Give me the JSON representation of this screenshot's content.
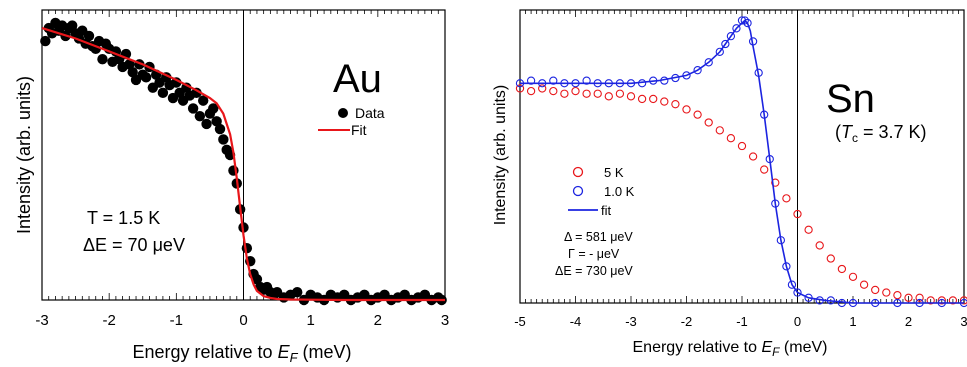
{
  "chart_data": [
    {
      "type": "scatter",
      "xlabel": "Energy relative to",
      "xlabel_var": "E",
      "xlabel_sub": "F",
      "xlabel_unit": " (meV)",
      "ylabel": "Intensity (arb. units)",
      "xlim": [
        -3,
        3
      ],
      "ylim": [
        0,
        1.12
      ],
      "xticks": [
        "-3",
        "-2",
        "-1",
        "0",
        "1",
        "2",
        "3"
      ],
      "yticks_labeled": false,
      "vline_x": 0,
      "sample_label": "Au",
      "annotations": [
        "T = 1.5 K",
        "ΔE = 70 μeV"
      ],
      "legend": {
        "placement": "right",
        "entries": [
          "Data",
          "Fit"
        ]
      },
      "colors": {
        "data": "#000000",
        "fit": "#e8161a"
      },
      "series": [
        {
          "name": "Data",
          "marker": "filled-circle",
          "x": [
            -2.95,
            -2.9,
            -2.85,
            -2.8,
            -2.75,
            -2.7,
            -2.65,
            -2.6,
            -2.55,
            -2.5,
            -2.45,
            -2.4,
            -2.35,
            -2.3,
            -2.25,
            -2.2,
            -2.15,
            -2.1,
            -2.05,
            -2.0,
            -1.95,
            -1.9,
            -1.85,
            -1.8,
            -1.75,
            -1.7,
            -1.65,
            -1.6,
            -1.55,
            -1.5,
            -1.45,
            -1.4,
            -1.35,
            -1.3,
            -1.25,
            -1.2,
            -1.15,
            -1.1,
            -1.05,
            -1.0,
            -0.95,
            -0.9,
            -0.85,
            -0.8,
            -0.75,
            -0.7,
            -0.65,
            -0.6,
            -0.55,
            -0.5,
            -0.45,
            -0.4,
            -0.35,
            -0.3,
            -0.25,
            -0.2,
            -0.15,
            -0.1,
            -0.05,
            0.0,
            0.05,
            0.1,
            0.15,
            0.2,
            0.25,
            0.3,
            0.35,
            0.4,
            0.45,
            0.5,
            0.6,
            0.7,
            0.8,
            0.9,
            1.0,
            1.1,
            1.2,
            1.3,
            1.4,
            1.5,
            1.6,
            1.7,
            1.8,
            1.9,
            2.0,
            2.1,
            2.2,
            2.3,
            2.4,
            2.5,
            2.6,
            2.7,
            2.8,
            2.9,
            2.95
          ],
          "y": [
            1.0,
            1.05,
            1.03,
            1.07,
            1.04,
            1.06,
            1.02,
            1.05,
            1.06,
            1.03,
            1.01,
            1.04,
            0.99,
            1.02,
            0.98,
            0.97,
            1.0,
            0.93,
            0.99,
            0.97,
            0.92,
            0.96,
            0.93,
            0.9,
            0.95,
            0.91,
            0.88,
            0.85,
            0.91,
            0.87,
            0.86,
            0.9,
            0.82,
            0.87,
            0.84,
            0.8,
            0.86,
            0.83,
            0.78,
            0.84,
            0.8,
            0.77,
            0.82,
            0.79,
            0.74,
            0.8,
            0.71,
            0.77,
            0.68,
            0.72,
            0.74,
            0.69,
            0.66,
            0.62,
            0.58,
            0.56,
            0.5,
            0.45,
            0.35,
            0.28,
            0.2,
            0.15,
            0.1,
            0.08,
            0.05,
            0.04,
            0.05,
            0.03,
            0.02,
            0.03,
            0.01,
            0.02,
            0.03,
            0.0,
            0.02,
            0.01,
            0.0,
            0.02,
            0.01,
            0.02,
            0.0,
            0.01,
            0.02,
            0.0,
            0.01,
            0.02,
            0.0,
            0.01,
            0.02,
            0.0,
            0.01,
            0.02,
            0.0,
            0.01,
            0.0
          ]
        },
        {
          "name": "Fit",
          "marker": "line",
          "x": [
            -3.0,
            -2.5,
            -2.0,
            -1.5,
            -1.0,
            -0.7,
            -0.5,
            -0.4,
            -0.3,
            -0.2,
            -0.15,
            -0.1,
            -0.05,
            0.0,
            0.05,
            0.1,
            0.15,
            0.2,
            0.3,
            0.4,
            0.5,
            0.7,
            1.0,
            1.5,
            2.0,
            3.0
          ],
          "y": [
            1.05,
            1.01,
            0.96,
            0.91,
            0.85,
            0.81,
            0.78,
            0.76,
            0.72,
            0.64,
            0.57,
            0.47,
            0.36,
            0.25,
            0.16,
            0.1,
            0.06,
            0.035,
            0.015,
            0.008,
            0.004,
            0.002,
            0.001,
            0.0,
            0.0,
            0.0
          ]
        }
      ]
    },
    {
      "type": "scatter",
      "xlabel": "Energy relative to",
      "xlabel_var": "E",
      "xlabel_sub": "F",
      "xlabel_unit": " (meV)",
      "ylabel": "Intensity (arb. units)",
      "xlim": [
        -5,
        3
      ],
      "ylim": [
        0,
        1.12
      ],
      "xticks": [
        "-5",
        "-4",
        "-3",
        "-2",
        "-1",
        "0",
        "1",
        "2",
        "3"
      ],
      "yticks_labeled": false,
      "vline_x": 0,
      "sample_label": "Sn",
      "tc_label": {
        "pre": "(",
        "var": "T",
        "sub": "c",
        "post": "  = 3.7 K)"
      },
      "annotations": [
        "Δ = 581  μeV",
        "Γ = -  μeV",
        "ΔE = 730  μeV"
      ],
      "legend": {
        "placement": "lower-left",
        "entries": [
          "5 K",
          "1.0 K",
          "fit"
        ]
      },
      "colors": {
        "5K": "#e8161a",
        "1K": "#1c24e0",
        "fit": "#1c24e0"
      },
      "series": [
        {
          "name": "5 K",
          "marker": "open-circle",
          "x": [
            -5.0,
            -4.8,
            -4.6,
            -4.4,
            -4.2,
            -4.0,
            -3.8,
            -3.6,
            -3.4,
            -3.2,
            -3.0,
            -2.8,
            -2.6,
            -2.4,
            -2.2,
            -2.0,
            -1.8,
            -1.6,
            -1.4,
            -1.2,
            -1.0,
            -0.8,
            -0.6,
            -0.4,
            -0.2,
            0.0,
            0.2,
            0.4,
            0.6,
            0.8,
            1.0,
            1.2,
            1.4,
            1.6,
            1.8,
            2.0,
            2.2,
            2.4,
            2.6,
            2.8,
            3.0
          ],
          "y": [
            0.82,
            0.81,
            0.82,
            0.81,
            0.8,
            0.81,
            0.8,
            0.8,
            0.79,
            0.8,
            0.79,
            0.78,
            0.78,
            0.77,
            0.76,
            0.74,
            0.72,
            0.69,
            0.66,
            0.63,
            0.6,
            0.56,
            0.51,
            0.46,
            0.4,
            0.34,
            0.28,
            0.22,
            0.17,
            0.13,
            0.1,
            0.07,
            0.05,
            0.04,
            0.03,
            0.02,
            0.02,
            0.01,
            0.01,
            0.01,
            0.01
          ]
        },
        {
          "name": "1.0 K",
          "marker": "open-circle",
          "x": [
            -5.0,
            -4.8,
            -4.6,
            -4.4,
            -4.2,
            -4.0,
            -3.8,
            -3.6,
            -3.4,
            -3.2,
            -3.0,
            -2.8,
            -2.6,
            -2.4,
            -2.2,
            -2.0,
            -1.8,
            -1.6,
            -1.4,
            -1.3,
            -1.2,
            -1.1,
            -1.0,
            -0.95,
            -0.9,
            -0.8,
            -0.7,
            -0.6,
            -0.5,
            -0.4,
            -0.3,
            -0.2,
            -0.1,
            0.0,
            0.2,
            0.4,
            0.6,
            0.8,
            1.0,
            1.4,
            1.8,
            2.2,
            2.6,
            3.0
          ],
          "y": [
            0.84,
            0.85,
            0.84,
            0.85,
            0.84,
            0.84,
            0.85,
            0.84,
            0.84,
            0.84,
            0.84,
            0.84,
            0.85,
            0.85,
            0.86,
            0.87,
            0.89,
            0.92,
            0.96,
            0.99,
            1.02,
            1.05,
            1.08,
            1.08,
            1.07,
            1.0,
            0.88,
            0.72,
            0.55,
            0.38,
            0.24,
            0.14,
            0.07,
            0.04,
            0.02,
            0.01,
            0.01,
            0.0,
            0.0,
            0.0,
            0.0,
            0.0,
            0.0,
            0.0
          ]
        },
        {
          "name": "fit",
          "marker": "line",
          "x": [
            -5.0,
            -4.0,
            -3.0,
            -2.5,
            -2.0,
            -1.8,
            -1.6,
            -1.4,
            -1.3,
            -1.2,
            -1.1,
            -1.0,
            -0.95,
            -0.9,
            -0.85,
            -0.8,
            -0.7,
            -0.6,
            -0.5,
            -0.4,
            -0.3,
            -0.2,
            -0.1,
            0.0,
            0.2,
            0.5,
            1.0,
            2.0,
            3.0
          ],
          "y": [
            0.84,
            0.84,
            0.84,
            0.85,
            0.87,
            0.89,
            0.92,
            0.96,
            0.99,
            1.02,
            1.05,
            1.07,
            1.08,
            1.07,
            1.04,
            0.98,
            0.87,
            0.72,
            0.55,
            0.38,
            0.24,
            0.14,
            0.07,
            0.04,
            0.02,
            0.01,
            0.0,
            0.0,
            0.0
          ]
        }
      ]
    }
  ]
}
